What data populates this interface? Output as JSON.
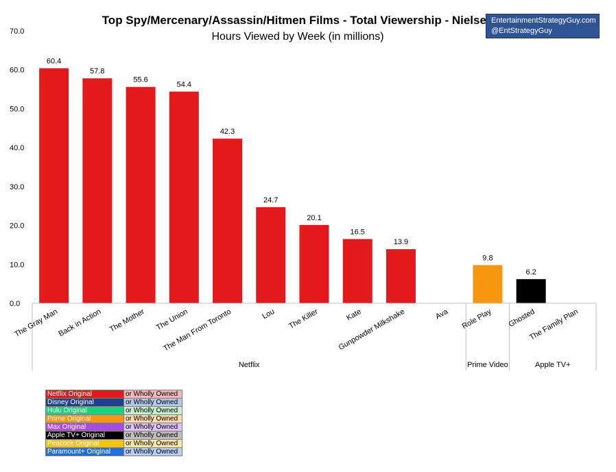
{
  "chart_data": {
    "type": "bar",
    "title": "Top Spy/Mercenary/Assassin/Hitmen Films - Total Viewership - Nielsen",
    "subtitle": "Hours Viewed by Week (in millions)",
    "ylim": [
      0,
      70
    ],
    "yticks": [
      "0.0",
      "10.0",
      "20.0",
      "30.0",
      "40.0",
      "50.0",
      "60.0",
      "70.0"
    ],
    "grid": false,
    "categories": [
      "The Gray Man",
      "Back in Action",
      "The Mother",
      "The Union",
      "The Man From Toronto",
      "Lou",
      "The Killer",
      "Kate",
      "Gunpowder Milkshake",
      "Ava",
      "Role Play",
      "Ghosted",
      "The Family Plan"
    ],
    "values": [
      60.4,
      57.8,
      55.6,
      54.4,
      42.3,
      24.7,
      20.1,
      16.5,
      13.9,
      null,
      9.8,
      6.2,
      null
    ],
    "value_labels": [
      "60.4",
      "57.8",
      "55.6",
      "54.4",
      "42.3",
      "24.7",
      "20.1",
      "16.5",
      "13.9",
      "",
      "9.8",
      "6.2",
      ""
    ],
    "bar_colors": [
      "#e31a1c",
      "#e31a1c",
      "#e31a1c",
      "#e31a1c",
      "#e31a1c",
      "#e31a1c",
      "#e31a1c",
      "#e31a1c",
      "#e31a1c",
      "#e31a1c",
      "#f7960f",
      "#000000",
      "#000000"
    ],
    "groups": [
      {
        "name": "Netflix",
        "start": 0,
        "end": 10
      },
      {
        "name": "Prime Video",
        "start": 10,
        "end": 11
      },
      {
        "name": "Apple TV+",
        "start": 11,
        "end": 13
      }
    ]
  },
  "branding": {
    "line1": "EntertainmentStrategyGuy.com",
    "line2": "@EntStrategyGuy"
  },
  "legend": [
    {
      "label": "Netflix Original",
      "note": "or Wholly Owned",
      "color": "#e31a1c",
      "note_color": "#f4b6b6"
    },
    {
      "label": "Disney Original",
      "note": "or Wholly Owned",
      "color": "#1f3f8f",
      "note_color": "#b4c7e7"
    },
    {
      "label": "Hulu Original",
      "note": "or Wholly Owned",
      "color": "#1fd17a",
      "note_color": "#c6efce"
    },
    {
      "label": "Prime Original",
      "note": "or Wholly Owned",
      "color": "#f7960f",
      "note_color": "#fbd9a9"
    },
    {
      "label": "Max Original",
      "note": "or Wholly Owned",
      "color": "#a64de0",
      "note_color": "#dcc3f2"
    },
    {
      "label": "Apple TV+ Original",
      "note": "or Wholly Owned",
      "color": "#000000",
      "note_color": "#bfbfbf"
    },
    {
      "label": "Peacock Original",
      "note": "or Wholly Owned",
      "color": "#f2c40f",
      "note_color": "#fbe8a6"
    },
    {
      "label": "Paramount+ Original",
      "note": "or Wholly Owned",
      "color": "#1f6fe0",
      "note_color": "#b4cef4"
    }
  ],
  "colors": {
    "axis": "#bfbfbf",
    "brand_bg": "#2f5496"
  }
}
